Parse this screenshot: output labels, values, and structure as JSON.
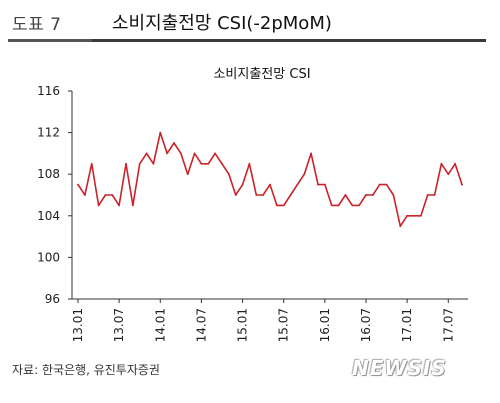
{
  "header": {
    "figure_label": "도표 7",
    "title": "소비지출전망 CSI(-2pMoM)"
  },
  "chart_data": {
    "type": "line",
    "title": "소비지출전망 CSI",
    "xlabel": "",
    "ylabel": "",
    "ylim": [
      96,
      116
    ],
    "yticks": [
      96,
      100,
      104,
      108,
      112,
      116
    ],
    "x": [
      "13.01",
      "13.02",
      "13.03",
      "13.04",
      "13.05",
      "13.06",
      "13.07",
      "13.08",
      "13.09",
      "13.10",
      "13.11",
      "13.12",
      "14.01",
      "14.02",
      "14.03",
      "14.04",
      "14.05",
      "14.06",
      "14.07",
      "14.08",
      "14.09",
      "14.10",
      "14.11",
      "14.12",
      "15.01",
      "15.02",
      "15.03",
      "15.04",
      "15.05",
      "15.06",
      "15.07",
      "15.08",
      "15.09",
      "15.10",
      "15.11",
      "15.12",
      "16.01",
      "16.02",
      "16.03",
      "16.04",
      "16.05",
      "16.06",
      "16.07",
      "16.08",
      "16.09",
      "16.10",
      "16.11",
      "16.12",
      "17.01",
      "17.02",
      "17.03",
      "17.04",
      "17.05",
      "17.06",
      "17.07",
      "17.08",
      "17.09"
    ],
    "xtick_labels": [
      "13.01",
      "13.07",
      "14.01",
      "14.07",
      "15.01",
      "15.07",
      "16.01",
      "16.07",
      "17.01",
      "17.07"
    ],
    "grid": false,
    "series": [
      {
        "color": "#cc2229",
        "values": [
          107,
          106,
          109,
          105,
          106,
          106,
          105,
          109,
          105,
          109,
          110,
          109,
          112,
          110,
          111,
          110,
          108,
          110,
          109,
          109,
          110,
          109,
          108,
          106,
          107,
          109,
          106,
          106,
          107,
          105,
          105,
          106,
          107,
          108,
          110,
          107,
          107,
          105,
          105,
          106,
          105,
          105,
          106,
          106,
          107,
          107,
          106,
          103,
          104,
          104,
          104,
          106,
          106,
          109,
          108,
          109,
          107
        ]
      }
    ]
  },
  "source": "자료: 한국은행, 유진투자증권",
  "watermark": "NEWSIS"
}
